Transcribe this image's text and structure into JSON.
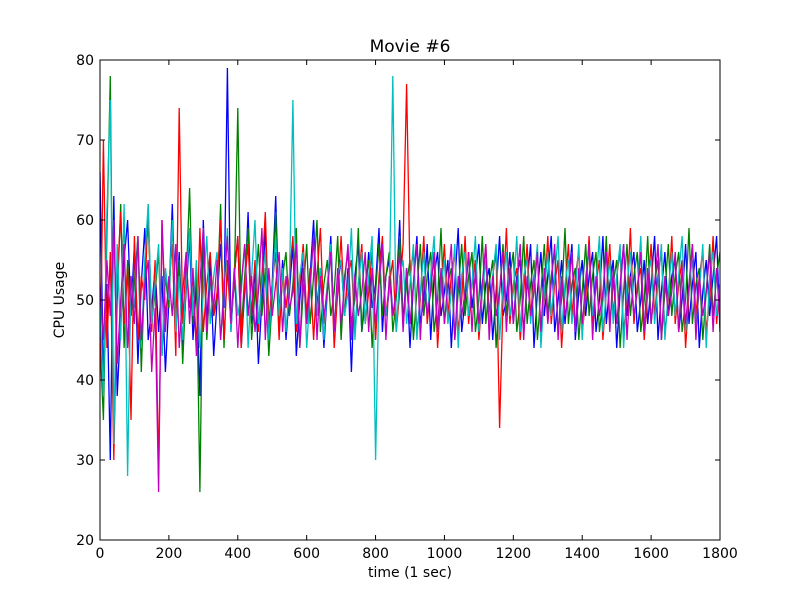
{
  "chart_data": {
    "type": "line",
    "title": "Movie #6",
    "xlabel": "time (1 sec)",
    "ylabel": "CPU Usage",
    "xlim": [
      0,
      1800
    ],
    "ylim": [
      20,
      80
    ],
    "x_ticks": [
      0,
      200,
      400,
      600,
      800,
      1000,
      1200,
      1400,
      1600,
      1800
    ],
    "y_ticks": [
      20,
      30,
      40,
      50,
      60,
      70,
      80
    ],
    "grid": false,
    "legend": "none",
    "x_step": 10,
    "series": [
      {
        "color": "#0000ff",
        "values": [
          66,
          40,
          52,
          30,
          63,
          38,
          47,
          55,
          60,
          48,
          57,
          42,
          52,
          59,
          45,
          49,
          54,
          46,
          53,
          41,
          50,
          62,
          47,
          56,
          44,
          51,
          58,
          45,
          52,
          38,
          60,
          47,
          55,
          43,
          50,
          57,
          49,
          79,
          46,
          53,
          58,
          44,
          51,
          61,
          47,
          54,
          42,
          50,
          59,
          46,
          52,
          63,
          48,
          55,
          45,
          51,
          57,
          43,
          50,
          56,
          47,
          53,
          60,
          49,
          54,
          44,
          51,
          58,
          46,
          52,
          55,
          48,
          54,
          41,
          53,
          57,
          46,
          50,
          56,
          49,
          52,
          59,
          46,
          53,
          55,
          48,
          51,
          60,
          47,
          54,
          44,
          52,
          58,
          47,
          50,
          57,
          45,
          53,
          56,
          48,
          51,
          55,
          44,
          52,
          59,
          46,
          50,
          56,
          49,
          53,
          57,
          47,
          52,
          54,
          45,
          51,
          58,
          48,
          50,
          56,
          47,
          53,
          55,
          46,
          52,
          57,
          44,
          51,
          56,
          48,
          53,
          58,
          46,
          50,
          55,
          47,
          52,
          57,
          45,
          51,
          55,
          48,
          53,
          56,
          46,
          50,
          58,
          47,
          52,
          55,
          44,
          51,
          57,
          48,
          53,
          56,
          46,
          50,
          55,
          47,
          52,
          58,
          45,
          51,
          56,
          48,
          53,
          55,
          46,
          50,
          57,
          47,
          52,
          56,
          44,
          51,
          55,
          48,
          53,
          58,
          46
        ]
      },
      {
        "color": "#008000",
        "values": [
          45,
          35,
          58,
          78,
          33,
          50,
          62,
          44,
          55,
          48,
          52,
          58,
          41,
          54,
          60,
          47,
          51,
          56,
          43,
          53,
          49,
          60,
          46,
          55,
          42,
          52,
          64,
          47,
          54,
          26,
          58,
          45,
          53,
          48,
          50,
          62,
          44,
          55,
          47,
          52,
          74,
          46,
          53,
          59,
          45,
          51,
          57,
          48,
          54,
          43,
          50,
          61,
          46,
          53,
          56,
          48,
          52,
          59,
          44,
          51,
          57,
          47,
          53,
          60,
          46,
          52,
          55,
          48,
          51,
          58,
          45,
          53,
          56,
          47,
          50,
          59,
          46,
          52,
          55,
          44,
          51,
          57,
          48,
          53,
          56,
          46,
          50,
          58,
          47,
          52,
          55,
          45,
          51,
          57,
          48,
          53,
          56,
          46,
          50,
          59,
          47,
          52,
          54,
          45,
          51,
          57,
          48,
          53,
          56,
          46,
          50,
          58,
          47,
          52,
          55,
          44,
          51,
          57,
          48,
          53,
          56,
          46,
          50,
          58,
          47,
          52,
          55,
          45,
          51,
          57,
          48,
          53,
          56,
          46,
          50,
          59,
          47,
          52,
          54,
          45,
          51,
          57,
          48,
          53,
          56,
          46,
          50,
          58,
          47,
          52,
          55,
          44,
          51,
          57,
          48,
          53,
          56,
          46,
          50,
          58,
          47,
          52,
          55,
          45,
          51,
          57,
          48,
          53,
          56,
          46,
          50,
          59,
          47,
          52,
          54,
          45,
          51,
          57,
          48,
          53,
          56
        ]
      },
      {
        "color": "#ff0000",
        "values": [
          40,
          70,
          44,
          56,
          30,
          52,
          61,
          47,
          54,
          35,
          58,
          45,
          53,
          50,
          62,
          46,
          55,
          28,
          60,
          48,
          52,
          57,
          43,
          74,
          47,
          55,
          49,
          53,
          44,
          59,
          46,
          52,
          56,
          48,
          51,
          60,
          45,
          54,
          47,
          53,
          58,
          44,
          52,
          57,
          48,
          55,
          46,
          53,
          61,
          47,
          52,
          56,
          45,
          54,
          49,
          53,
          58,
          46,
          52,
          57,
          48,
          54,
          45,
          53,
          59,
          47,
          52,
          56,
          44,
          51,
          58,
          48,
          53,
          55,
          46,
          52,
          57,
          47,
          51,
          56,
          45,
          53,
          58,
          48,
          52,
          55,
          46,
          51,
          57,
          77,
          53,
          56,
          46,
          50,
          58,
          47,
          52,
          55,
          44,
          51,
          57,
          48,
          53,
          56,
          46,
          50,
          58,
          47,
          52,
          55,
          45,
          51,
          57,
          48,
          53,
          56,
          34,
          50,
          59,
          47,
          52,
          54,
          45,
          51,
          57,
          48,
          53,
          56,
          46,
          50,
          58,
          47,
          52,
          55,
          44,
          51,
          57,
          48,
          53,
          56,
          46,
          50,
          58,
          47,
          52,
          55,
          45,
          51,
          57,
          48,
          53,
          56,
          46,
          50,
          59,
          47,
          52,
          54,
          45,
          51,
          57,
          48,
          53,
          56,
          46,
          50,
          58,
          47,
          52,
          55,
          44,
          51,
          57,
          48,
          53,
          56,
          46,
          50,
          58,
          47,
          52
        ]
      },
      {
        "color": "#00bfbf",
        "values": [
          50,
          38,
          61,
          75,
          32,
          57,
          45,
          62,
          28,
          53,
          49,
          58,
          44,
          55,
          62,
          47,
          52,
          57,
          43,
          54,
          50,
          60,
          46,
          53,
          45,
          52,
          59,
          48,
          55,
          44,
          51,
          58,
          47,
          53,
          56,
          45,
          52,
          59,
          46,
          54,
          48,
          51,
          57,
          44,
          53,
          60,
          47,
          52,
          56,
          45,
          51,
          58,
          48,
          54,
          46,
          52,
          75,
          47,
          53,
          56,
          44,
          51,
          58,
          48,
          54,
          45,
          52,
          57,
          46,
          53,
          55,
          48,
          51,
          59,
          45,
          52,
          56,
          47,
          53,
          58,
          30,
          52,
          56,
          48,
          51,
          78,
          46,
          53,
          55,
          47,
          52,
          57,
          45,
          51,
          56,
          48,
          53,
          58,
          46,
          52,
          55,
          47,
          51,
          57,
          44,
          53,
          56,
          48,
          52,
          58,
          46,
          51,
          55,
          47,
          53,
          57,
          45,
          52,
          56,
          48,
          51,
          58,
          46,
          53,
          55,
          47,
          52,
          57,
          44,
          51,
          56,
          48,
          53,
          58,
          46,
          52,
          55,
          47,
          51,
          57,
          45,
          53,
          56,
          48,
          52,
          58,
          46,
          51,
          55,
          47,
          53,
          57,
          44,
          52,
          56,
          48,
          51,
          58,
          46,
          53,
          55,
          47,
          52,
          57,
          45,
          51,
          56,
          48,
          53,
          58,
          46,
          52,
          55,
          47,
          51,
          57,
          44,
          53,
          56,
          48,
          52
        ]
      },
      {
        "color": "#bf00bf",
        "values": [
          52,
          45,
          55,
          48,
          60,
          42,
          50,
          57,
          44,
          53,
          47,
          58,
          45,
          52,
          55,
          41,
          49,
          26,
          60,
          46,
          53,
          48,
          57,
          44,
          51,
          56,
          47,
          54,
          43,
          52,
          59,
          46,
          53,
          49,
          55,
          45,
          51,
          58,
          47,
          54,
          44,
          52,
          57,
          48,
          53,
          46,
          51,
          59,
          45,
          54,
          48,
          52,
          56,
          46,
          53,
          49,
          51,
          57,
          44,
          54,
          47,
          52,
          58,
          45,
          53,
          48,
          51,
          56,
          46,
          54,
          47,
          52,
          57,
          45,
          53,
          48,
          51,
          56,
          46,
          54,
          47,
          52,
          57,
          45,
          53,
          48,
          51,
          56,
          46,
          54,
          47,
          52,
          57,
          45,
          53,
          48,
          51,
          56,
          46,
          54,
          47,
          52,
          57,
          45,
          53,
          48,
          51,
          56,
          46,
          54,
          47,
          52,
          57,
          45,
          53,
          48,
          51,
          56,
          46,
          54,
          47,
          52,
          57,
          45,
          53,
          48,
          51,
          56,
          46,
          54,
          47,
          52,
          57,
          45,
          53,
          48,
          51,
          56,
          46,
          54,
          47,
          52,
          57,
          45,
          53,
          48,
          51,
          56,
          46,
          54,
          47,
          52,
          57,
          45,
          53,
          48,
          51,
          56,
          46,
          54,
          47,
          52,
          57,
          45,
          53,
          48,
          51,
          56,
          46,
          54,
          47,
          52,
          57,
          45,
          53,
          48,
          51,
          56,
          46,
          54,
          47,
          52,
          57,
          45,
          53
        ]
      }
    ]
  }
}
